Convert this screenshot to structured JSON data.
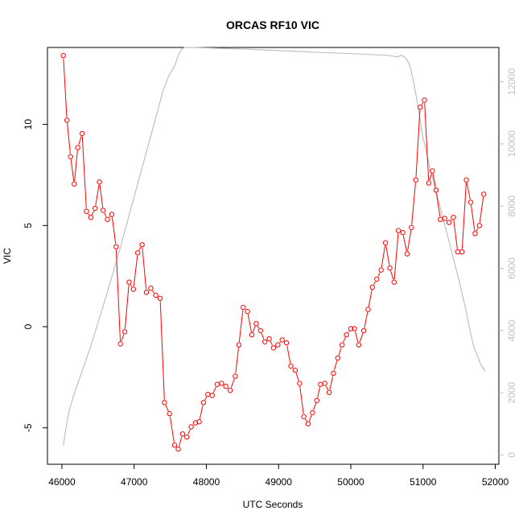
{
  "chart_data": {
    "type": "line",
    "title": "ORCAS RF10 VIC",
    "xlabel": "UTC Seconds",
    "ylabel": "VIC",
    "xlim": [
      45800,
      52050
    ],
    "ylim": [
      -6.8,
      13.8
    ],
    "y2lim": [
      -300,
      13100
    ],
    "x_ticks": [
      46000,
      47000,
      48000,
      49000,
      50000,
      51000,
      52000
    ],
    "y_ticks": [
      -5,
      0,
      5,
      10
    ],
    "y2_ticks": [
      0,
      2000,
      4000,
      6000,
      8000,
      10000,
      12000
    ],
    "grid": false,
    "colors": {
      "vic": "#ff0000",
      "altitude": "#c0c0c0",
      "axis": "#000000",
      "axis_right": "#c0c0c0"
    },
    "series": [
      {
        "axis": "left",
        "style": "line+points",
        "x": [
          46020,
          46070,
          46120,
          46170,
          46220,
          46280,
          46340,
          46400,
          46460,
          46520,
          46570,
          46630,
          46690,
          46750,
          46810,
          46870,
          46930,
          46990,
          47050,
          47110,
          47170,
          47230,
          47300,
          47360,
          47420,
          47490,
          47560,
          47610,
          47670,
          47730,
          47790,
          47850,
          47900,
          47960,
          48020,
          48080,
          48150,
          48210,
          48270,
          48330,
          48400,
          48450,
          48510,
          48570,
          48630,
          48690,
          48750,
          48810,
          48870,
          48930,
          48990,
          49050,
          49110,
          49170,
          49230,
          49290,
          49350,
          49410,
          49470,
          49530,
          49580,
          49640,
          49700,
          49760,
          49820,
          49880,
          49940,
          50000,
          50050,
          50110,
          50180,
          50240,
          50300,
          50360,
          50420,
          50480,
          50540,
          50600,
          50660,
          50720,
          50780,
          50840,
          50900,
          50960,
          51020,
          51080,
          51130,
          51180,
          51240,
          51300,
          51360,
          51420,
          51480,
          51540,
          51600,
          51660,
          51720,
          51780,
          51840
        ],
        "y": [
          13.4,
          10.2,
          8.4,
          7.05,
          8.85,
          9.55,
          5.7,
          5.4,
          5.85,
          7.15,
          5.75,
          5.3,
          5.55,
          3.95,
          -0.85,
          -0.25,
          2.2,
          1.85,
          3.65,
          4.05,
          1.7,
          1.9,
          1.55,
          1.4,
          -3.75,
          -4.3,
          -5.85,
          -6.05,
          -5.3,
          -5.45,
          -4.95,
          -4.75,
          -4.7,
          -3.75,
          -3.35,
          -3.4,
          -2.85,
          -2.8,
          -2.95,
          -3.15,
          -2.45,
          -0.9,
          0.95,
          0.75,
          -0.4,
          0.15,
          -0.2,
          -0.75,
          -0.6,
          -1.05,
          -0.9,
          -0.65,
          -0.8,
          -1.95,
          -2.15,
          -2.8,
          -4.45,
          -4.8,
          -4.25,
          -3.65,
          -2.85,
          -2.8,
          -3.25,
          -2.3,
          -1.55,
          -0.9,
          -0.4,
          -0.1,
          -0.1,
          -0.9,
          -0.2,
          0.85,
          1.95,
          2.35,
          2.8,
          4.15,
          2.9,
          2.2,
          4.75,
          4.65,
          3.6,
          4.9,
          7.25,
          10.85,
          11.2,
          7.1,
          7.7,
          6.75,
          5.3,
          5.35,
          5.15,
          5.4,
          3.7,
          3.7,
          7.25,
          6.15,
          4.6,
          5.0,
          6.55
        ]
      },
      {
        "axis": "right",
        "style": "line",
        "x": [
          46020,
          46060,
          46100,
          46160,
          46250,
          46400,
          46600,
          46800,
          47000,
          47200,
          47400,
          47480,
          47560,
          47620,
          47660,
          47700,
          47800,
          48500,
          49500,
          50000,
          50500,
          50650,
          50700,
          50740,
          50780,
          50820,
          50860,
          50900,
          51000,
          51100,
          51200,
          51300,
          51400,
          51500,
          51600,
          51650,
          51700,
          51750,
          51800,
          51860
        ],
        "y": [
          300,
          900,
          1400,
          1900,
          2500,
          3500,
          5000,
          6600,
          8300,
          10000,
          11700,
          12200,
          12500,
          12900,
          13050,
          13100,
          13100,
          13050,
          12950,
          12900,
          12850,
          12800,
          12850,
          12800,
          12700,
          12500,
          12100,
          11600,
          10200,
          9200,
          8300,
          7400,
          6500,
          5600,
          4600,
          4000,
          3500,
          3200,
          2900,
          2700
        ]
      }
    ]
  }
}
